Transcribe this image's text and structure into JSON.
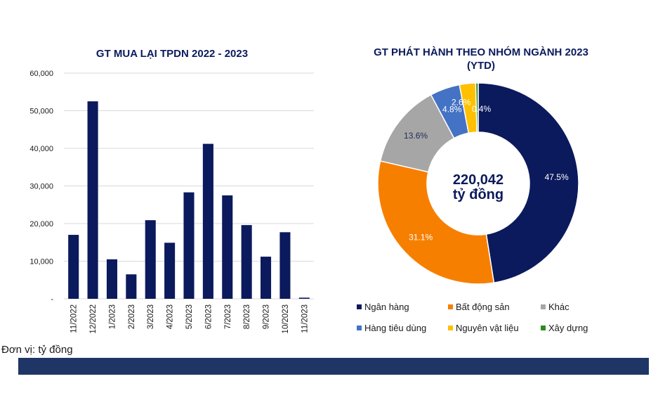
{
  "colors": {
    "bar": "#0b1a5c",
    "title": "#0b1a5c",
    "grid": "#d9d9d9",
    "footer": "#1f3566"
  },
  "unit_note": "Đơn vị: tỷ đồng",
  "chart_data": [
    {
      "type": "bar",
      "title": "GT MUA LẠI TPDN 2022 - 2023",
      "categories": [
        "11/2022",
        "12/2022",
        "1/2023",
        "2/2023",
        "3/2023",
        "4/2023",
        "5/2023",
        "6/2023",
        "7/2023",
        "8/2023",
        "9/2023",
        "10/2023",
        "11/2023"
      ],
      "values": [
        17000,
        52500,
        10500,
        6500,
        20900,
        14900,
        28300,
        41200,
        27500,
        19600,
        11200,
        17700,
        300
      ],
      "ylim": [
        0,
        60000
      ],
      "yticks": [
        "-",
        "10,000",
        "20,000",
        "30,000",
        "40,000",
        "50,000",
        "60,000"
      ],
      "grid": true,
      "color": "#0b1a5c"
    },
    {
      "type": "pie",
      "title": "GT PHÁT HÀNH THEO NHÓM NGÀNH 2023",
      "subtitle": "(YTD)",
      "center_value": "220,042",
      "center_unit": "tỷ đồng",
      "legend_position": "bottom",
      "slices": [
        {
          "label": "Ngân hàng",
          "value": 47.5,
          "display": "47.5%",
          "color": "#0b1a5c",
          "text_color": "#ffffff"
        },
        {
          "label": "Bất động sản",
          "value": 31.1,
          "display": "31.1%",
          "color": "#f77f00",
          "text_color": "#ffffff"
        },
        {
          "label": "Khác",
          "value": 13.6,
          "display": "13.6%",
          "color": "#a6a6a6",
          "text_color": "#1f2d55"
        },
        {
          "label": "Hàng tiêu dùng",
          "value": 4.8,
          "display": "4.8%",
          "color": "#4472c4",
          "text_color": "#ffffff"
        },
        {
          "label": "Nguyên vật liệu",
          "value": 2.6,
          "display": "2.6%",
          "color": "#ffc000",
          "text_color": "#ffffff"
        },
        {
          "label": "Xây dựng",
          "value": 0.4,
          "display": "0.4%",
          "color": "#2e8b22",
          "text_color": "#ffffff"
        }
      ]
    }
  ]
}
